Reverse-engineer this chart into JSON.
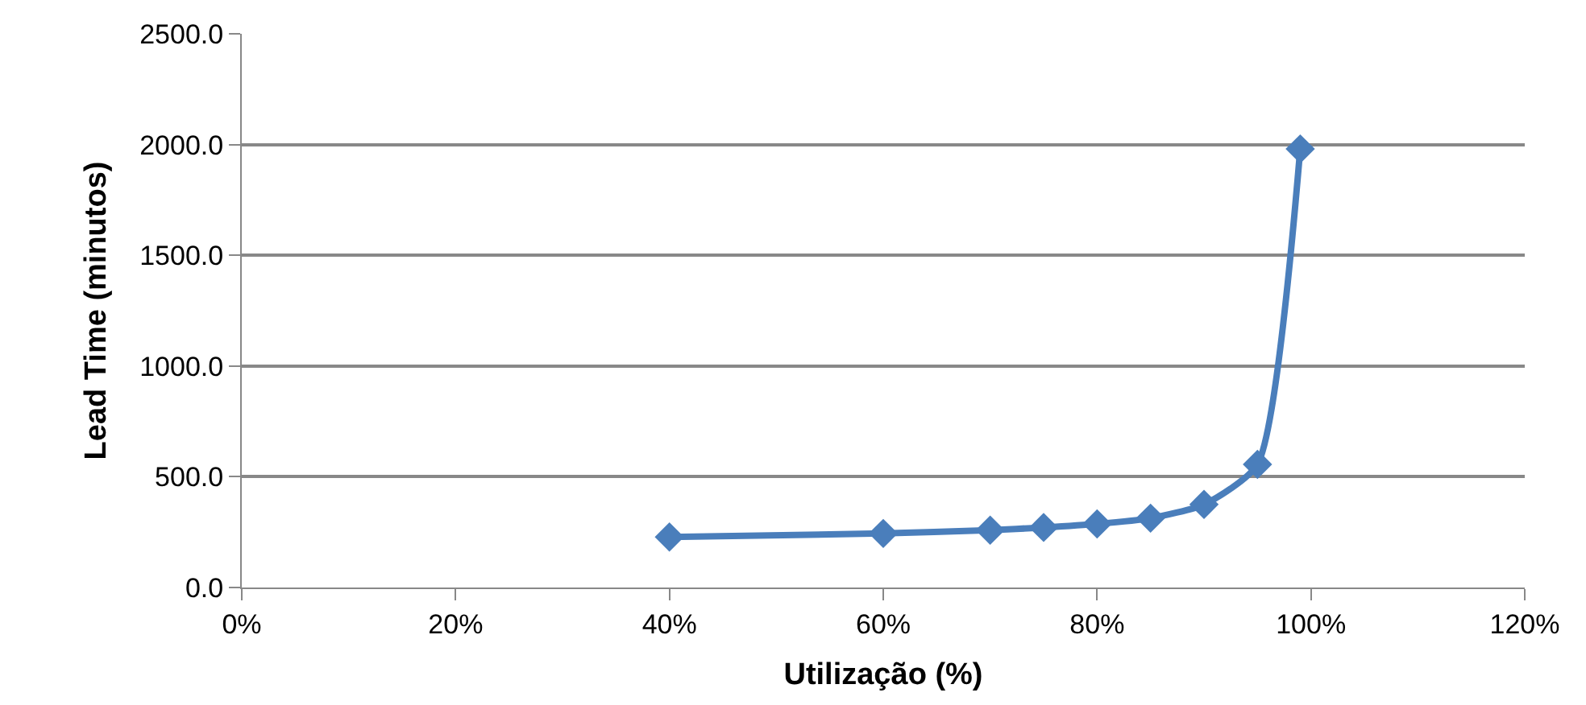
{
  "chart_data": {
    "type": "line",
    "xlabel": "Utilização (%)",
    "ylabel": "Lead Time (minutos)",
    "x": [
      40,
      60,
      70,
      75,
      80,
      85,
      90,
      95,
      99
    ],
    "series": [
      {
        "color": "#4a7ebb",
        "values": [
          228,
          244,
          259,
          271,
          287,
          313,
          375,
          556,
          1980
        ]
      }
    ],
    "xlim": [
      0,
      120
    ],
    "xticks": [
      {
        "value": 0,
        "label": "0%"
      },
      {
        "value": 20,
        "label": "20%"
      },
      {
        "value": 40,
        "label": "40%"
      },
      {
        "value": 60,
        "label": "60%"
      },
      {
        "value": 80,
        "label": "80%"
      },
      {
        "value": 100,
        "label": "100%"
      },
      {
        "value": 120,
        "label": "120%"
      }
    ],
    "ylim": [
      0,
      2500
    ],
    "yticks": [
      {
        "value": 0,
        "label": "0.0"
      },
      {
        "value": 500,
        "label": "500.0"
      },
      {
        "value": 1000,
        "label": "1000.0"
      },
      {
        "value": 1500,
        "label": "1500.0"
      },
      {
        "value": 2000,
        "label": "2000.0"
      },
      {
        "value": 2500,
        "label": "2500.0"
      }
    ],
    "grid": "y",
    "marker": "diamond",
    "line_style": "solid"
  }
}
